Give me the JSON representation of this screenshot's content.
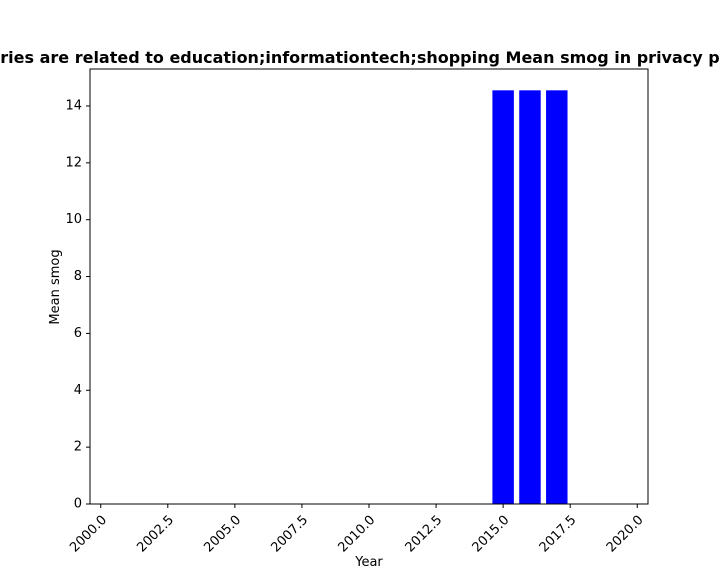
{
  "chart_data": {
    "type": "bar",
    "title": "ries are related to education;informationtech;shopping Mean smog in privacy p",
    "xlabel": "Year",
    "ylabel": "Mean smog",
    "x": [
      2015,
      2016,
      2017
    ],
    "values": [
      14.55,
      14.55,
      14.55
    ],
    "bar_width": 0.8,
    "xlim": [
      1999.6,
      2020.4
    ],
    "ylim": [
      0,
      15.3
    ],
    "xticks": [
      2000.0,
      2002.5,
      2005.0,
      2007.5,
      2010.0,
      2012.5,
      2015.0,
      2017.5,
      2020.0
    ],
    "xtick_labels": [
      "2000.0",
      "2002.5",
      "2005.0",
      "2007.5",
      "2010.0",
      "2012.5",
      "2015.0",
      "2017.5",
      "2020.0"
    ],
    "yticks": [
      0,
      2,
      4,
      6,
      8,
      10,
      12,
      14
    ],
    "ytick_labels": [
      "0",
      "2",
      "4",
      "6",
      "8",
      "10",
      "12",
      "14"
    ],
    "bar_color": "#0000ff",
    "grid": false,
    "legend": "none"
  }
}
